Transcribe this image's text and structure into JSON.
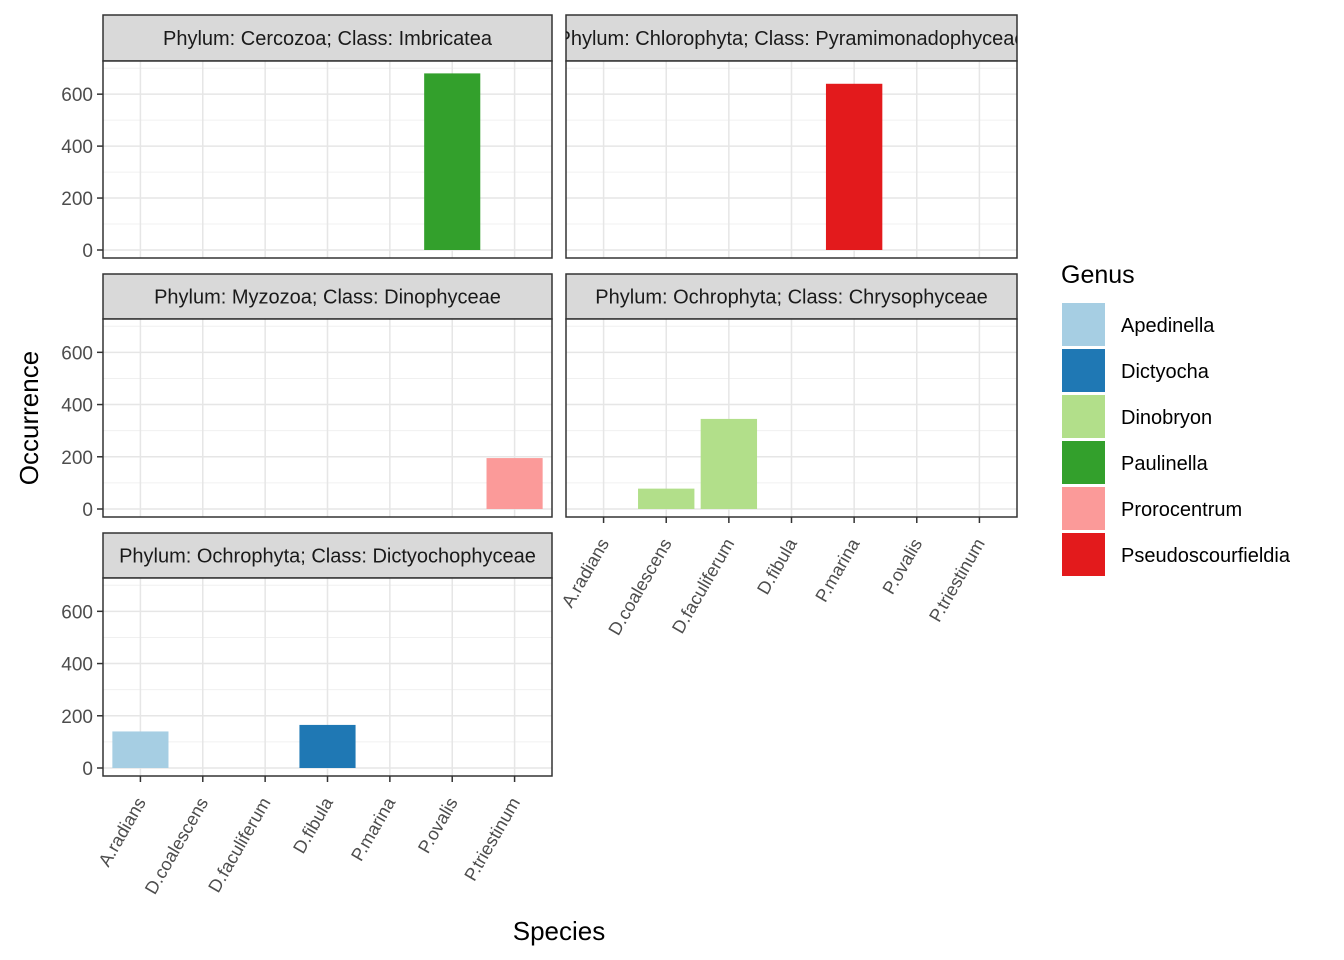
{
  "chart_data": {
    "type": "bar",
    "xlabel": "Species",
    "ylabel": "Occurrence",
    "categories": [
      "A.radians",
      "D.coalescens",
      "D.faculiferum",
      "D.fibula",
      "P.marina",
      "P.ovalis",
      "P.triestinum"
    ],
    "y_ticks": [
      0,
      200,
      400,
      600
    ],
    "ylim": [
      0,
      720
    ],
    "grid": true,
    "legend": {
      "title": "Genus",
      "placement": "right",
      "entries": [
        {
          "name": "Apedinella",
          "color": "#A6CEE3"
        },
        {
          "name": "Dictyocha",
          "color": "#1F78B4"
        },
        {
          "name": "Dinobryon",
          "color": "#B2DF8A"
        },
        {
          "name": "Paulinella",
          "color": "#33A02C"
        },
        {
          "name": "Prorocentrum",
          "color": "#FB9A99"
        },
        {
          "name": "Pseudoscourfieldia",
          "color": "#E31A1C"
        }
      ]
    },
    "panels": [
      {
        "strip": "Phylum: Cercozoa; Class: Imbricatea",
        "bars": [
          {
            "category": "P.ovalis",
            "genus": "Paulinella",
            "value": 680
          }
        ]
      },
      {
        "strip": "Phylum: Chlorophyta; Class: Pyramimonadophyceae",
        "bars": [
          {
            "category": "P.marina",
            "genus": "Pseudoscourfieldia",
            "value": 640
          }
        ]
      },
      {
        "strip": "Phylum: Myzozoa; Class: Dinophyceae",
        "bars": [
          {
            "category": "P.triestinum",
            "genus": "Prorocentrum",
            "value": 195
          }
        ]
      },
      {
        "strip": "Phylum: Ochrophyta; Class: Chrysophyceae",
        "bars": [
          {
            "category": "D.coalescens",
            "genus": "Dinobryon",
            "value": 78
          },
          {
            "category": "D.faculiferum",
            "genus": "Dinobryon",
            "value": 345
          }
        ]
      },
      {
        "strip": "Phylum: Ochrophyta; Class: Dictyochophyceae",
        "bars": [
          {
            "category": "A.radians",
            "genus": "Apedinella",
            "value": 140
          },
          {
            "category": "D.fibula",
            "genus": "Dictyocha",
            "value": 165
          }
        ]
      }
    ]
  }
}
